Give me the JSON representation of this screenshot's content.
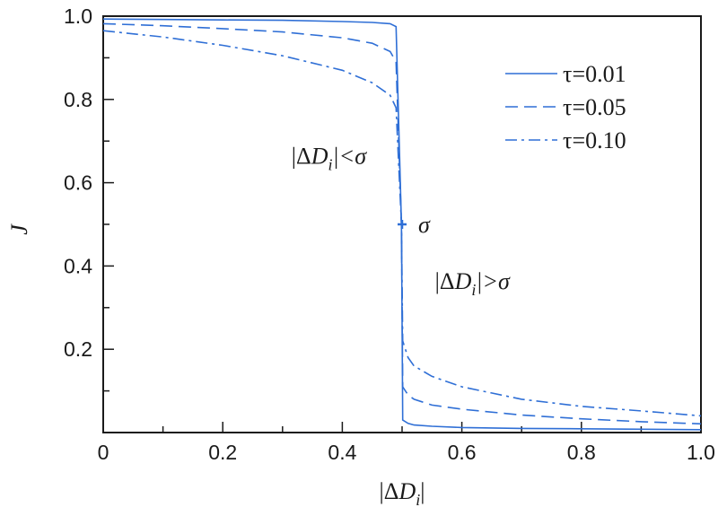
{
  "chart_data": {
    "type": "line",
    "title": "",
    "xlabel": "|ΔD_i|",
    "ylabel": "J",
    "xlim": [
      0,
      1.0
    ],
    "ylim": [
      0,
      1.0
    ],
    "grid": false,
    "legend_position": "top-right",
    "xticks": [
      "0",
      "0.2",
      "0.4",
      "0.6",
      "0.8",
      "1.0"
    ],
    "yticks": [
      "0.2",
      "0.4",
      "0.6",
      "0.8",
      "1.0"
    ],
    "origin_label": "0",
    "series": [
      {
        "name": "τ=0.01",
        "style": "solid",
        "x": [
          0,
          0.1,
          0.2,
          0.3,
          0.4,
          0.45,
          0.48,
          0.49,
          0.499,
          0.501,
          0.51,
          0.52,
          0.55,
          0.6,
          0.7,
          0.8,
          0.9,
          1.0
        ],
        "y": [
          0.993,
          0.992,
          0.991,
          0.99,
          0.987,
          0.985,
          0.982,
          0.975,
          0.5,
          0.03,
          0.022,
          0.018,
          0.015,
          0.012,
          0.01,
          0.009,
          0.008,
          0.007
        ]
      },
      {
        "name": "τ=0.05",
        "style": "dashed",
        "x": [
          0,
          0.1,
          0.2,
          0.3,
          0.4,
          0.45,
          0.48,
          0.49,
          0.499,
          0.501,
          0.51,
          0.52,
          0.55,
          0.6,
          0.7,
          0.8,
          0.9,
          1.0
        ],
        "y": [
          0.982,
          0.977,
          0.97,
          0.962,
          0.948,
          0.935,
          0.915,
          0.89,
          0.5,
          0.11,
          0.09,
          0.08,
          0.066,
          0.056,
          0.042,
          0.033,
          0.026,
          0.021
        ]
      },
      {
        "name": "τ=0.10",
        "style": "dashdot",
        "x": [
          0,
          0.1,
          0.2,
          0.3,
          0.4,
          0.45,
          0.48,
          0.49,
          0.499,
          0.501,
          0.51,
          0.52,
          0.55,
          0.6,
          0.7,
          0.8,
          0.9,
          1.0
        ],
        "y": [
          0.965,
          0.95,
          0.93,
          0.905,
          0.87,
          0.84,
          0.81,
          0.78,
          0.5,
          0.22,
          0.18,
          0.16,
          0.135,
          0.11,
          0.08,
          0.063,
          0.052,
          0.04
        ]
      }
    ],
    "marker": {
      "label": "σ",
      "x": 0.5,
      "y": 0.5
    },
    "annotations": [
      {
        "id": "lt",
        "parts": [
          "|Δ",
          "D",
          "i",
          "|<σ"
        ],
        "x": 0.315,
        "y": 0.645
      },
      {
        "id": "gt",
        "parts": [
          "|Δ",
          "D",
          "i",
          "|>σ"
        ],
        "x": 0.555,
        "y": 0.345
      }
    ],
    "colors": {
      "line": "#2f6fd6",
      "axis": "#1a1a1a"
    }
  }
}
